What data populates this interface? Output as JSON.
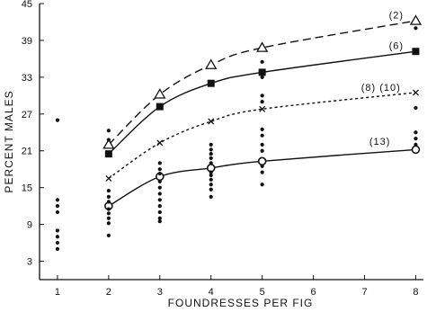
{
  "chart_data": {
    "type": "scatter",
    "xlabel": "FOUNDRESSES PER FIG",
    "ylabel": "PERCENT MALES",
    "x_ticks": [
      1,
      2,
      3,
      4,
      5,
      6,
      7,
      8
    ],
    "y_ticks": [
      3,
      9,
      15,
      21,
      27,
      33,
      39,
      45
    ],
    "xlim": [
      0.65,
      8.15
    ],
    "ylim": [
      0,
      45
    ],
    "grid": false,
    "curve_labels": [
      {
        "text": "(2)",
        "x": 7.62,
        "y": 43.2
      },
      {
        "text": "(6)",
        "x": 7.62,
        "y": 38.2
      },
      {
        "text": "(8) (10)",
        "x": 7.32,
        "y": 31.4
      },
      {
        "text": "(13)",
        "x": 7.3,
        "y": 22.6
      }
    ],
    "series": [
      {
        "marker": "open-triangle",
        "line_style": "long-dash",
        "points": [
          [
            2,
            22.0
          ],
          [
            3,
            30.2
          ],
          [
            4,
            35.0
          ],
          [
            5,
            37.8
          ],
          [
            8,
            42.2
          ]
        ]
      },
      {
        "marker": "filled-square",
        "line_style": "solid",
        "points": [
          [
            2,
            20.5
          ],
          [
            3,
            28.2
          ],
          [
            4,
            32.0
          ],
          [
            5,
            33.8
          ],
          [
            8,
            37.2
          ]
        ]
      },
      {
        "marker": "x",
        "line_style": "short-dash",
        "points": [
          [
            2,
            16.5
          ],
          [
            3,
            22.3
          ],
          [
            4,
            25.8
          ],
          [
            5,
            27.8
          ],
          [
            8,
            30.5
          ]
        ]
      },
      {
        "marker": "open-circle",
        "line_style": "solid",
        "points": [
          [
            2,
            12.0
          ],
          [
            3,
            16.8
          ],
          [
            4,
            18.2
          ],
          [
            5,
            19.3
          ],
          [
            8,
            21.2
          ]
        ]
      },
      {
        "marker": "dot",
        "line_style": "none",
        "points": [
          [
            1,
            26.0
          ],
          [
            1,
            13.0
          ],
          [
            1,
            12.0
          ],
          [
            1,
            11.0
          ],
          [
            1,
            8.0
          ],
          [
            1,
            7.0
          ],
          [
            1,
            6.0
          ],
          [
            1,
            5.0
          ],
          [
            2,
            24.3
          ],
          [
            2,
            22.8
          ],
          [
            2,
            14.5
          ],
          [
            2,
            13.5
          ],
          [
            2,
            12.7
          ],
          [
            2,
            11.5
          ],
          [
            2,
            10.8
          ],
          [
            2,
            10.0
          ],
          [
            2,
            9.2
          ],
          [
            2,
            7.2
          ],
          [
            3,
            19.0
          ],
          [
            3,
            18.0
          ],
          [
            3,
            17.3
          ],
          [
            3,
            16.0
          ],
          [
            3,
            15.0
          ],
          [
            3,
            14.0
          ],
          [
            3,
            13.0
          ],
          [
            3,
            12.0
          ],
          [
            3,
            11.0
          ],
          [
            3,
            10.0
          ],
          [
            3,
            9.5
          ],
          [
            4,
            22.0
          ],
          [
            4,
            21.2
          ],
          [
            4,
            20.5
          ],
          [
            4,
            19.8
          ],
          [
            4,
            19.0
          ],
          [
            4,
            17.5
          ],
          [
            4,
            17.0
          ],
          [
            4,
            16.3
          ],
          [
            4,
            15.5
          ],
          [
            4,
            14.7
          ],
          [
            4,
            13.5
          ],
          [
            5,
            35.5
          ],
          [
            5,
            33.0
          ],
          [
            5,
            30.0
          ],
          [
            5,
            29.0
          ],
          [
            5,
            24.5
          ],
          [
            5,
            23.5
          ],
          [
            5,
            22.0
          ],
          [
            5,
            21.0
          ],
          [
            5,
            18.5
          ],
          [
            5,
            17.5
          ],
          [
            5,
            15.5
          ],
          [
            8,
            41.0
          ],
          [
            8,
            28.0
          ],
          [
            8,
            24.0
          ],
          [
            8,
            23.0
          ],
          [
            8,
            22.0
          ]
        ]
      }
    ]
  }
}
